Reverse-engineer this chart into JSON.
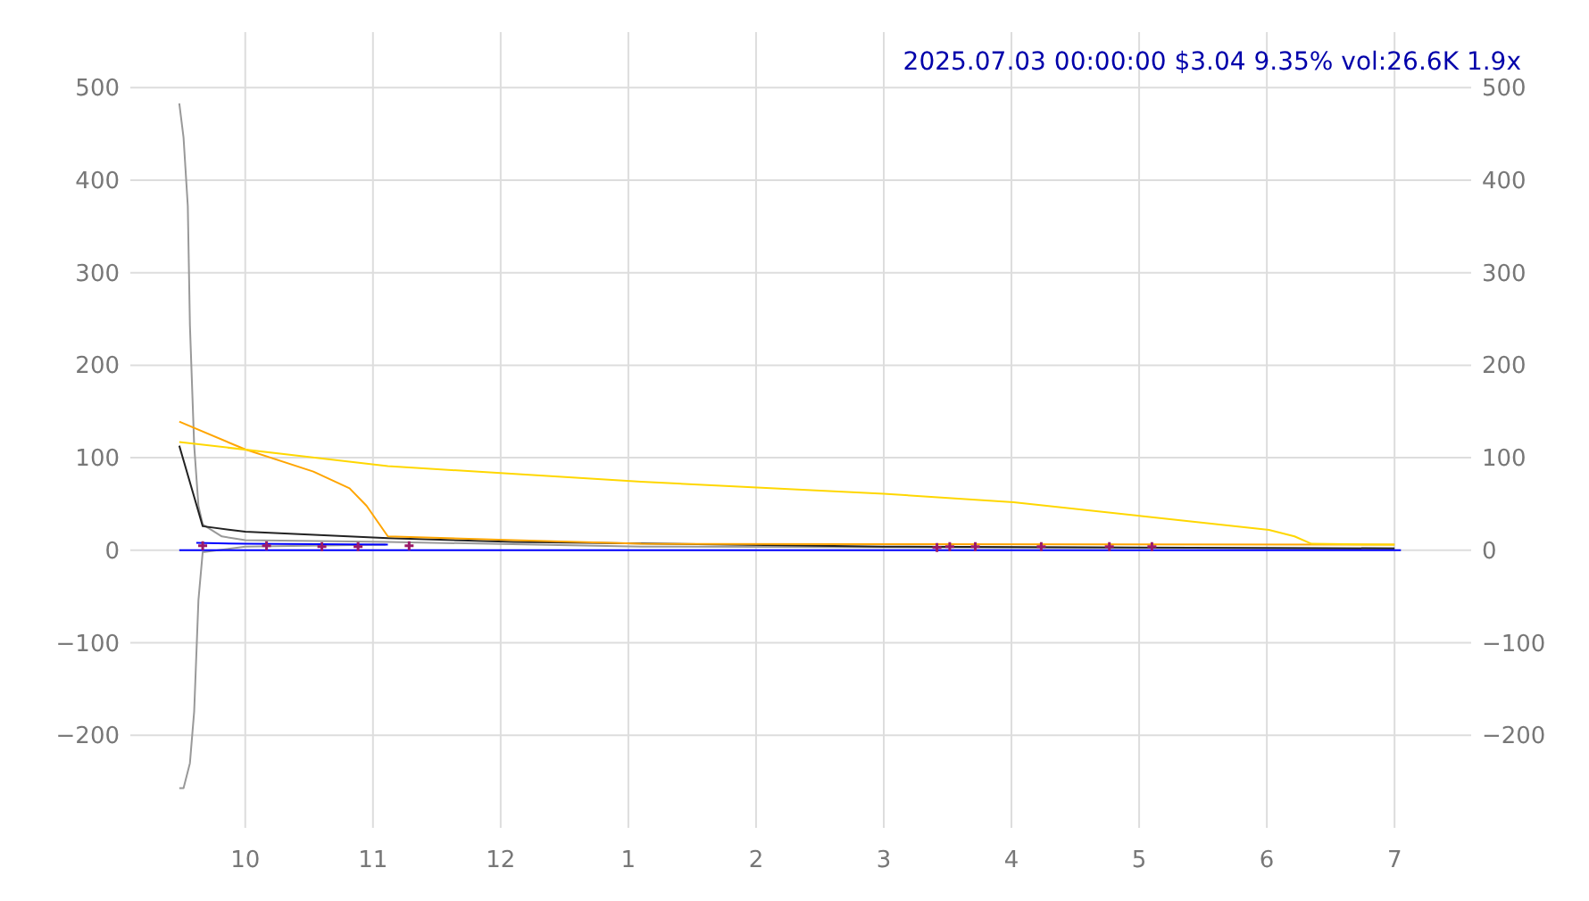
{
  "chart_data": {
    "type": "line",
    "title": "2025.07.03 00:00:00 $3.04 9.35% vol:26.6K 1.9x",
    "xlim": [
      "2025-07-03T09:06",
      "2025-07-03T19:36"
    ],
    "xticks": [
      {
        "value": "2025-07-03T10:00",
        "label": "10"
      },
      {
        "value": "2025-07-03T11:00",
        "label": "11"
      },
      {
        "value": "2025-07-03T12:00",
        "label": "12"
      },
      {
        "value": "2025-07-03T13:00",
        "label": "1"
      },
      {
        "value": "2025-07-03T14:00",
        "label": "2"
      },
      {
        "value": "2025-07-03T15:00",
        "label": "3"
      },
      {
        "value": "2025-07-03T16:00",
        "label": "4"
      },
      {
        "value": "2025-07-03T17:00",
        "label": "5"
      },
      {
        "value": "2025-07-03T18:00",
        "label": "6"
      },
      {
        "value": "2025-07-03T19:00",
        "label": "7"
      }
    ],
    "ylim": [
      -300,
      560
    ],
    "yticks": [
      -200,
      -100,
      0,
      100,
      200,
      300,
      400,
      500
    ],
    "y2lim": [
      -300,
      560
    ],
    "y2ticks": [
      -200,
      -100,
      0,
      100,
      200,
      300,
      400,
      500
    ],
    "grid": true,
    "marker": "none",
    "series": [
      {
        "color": "#999999",
        "x": [
          "2025-07-03T09:29",
          "2025-07-03T09:31",
          "2025-07-03T09:33",
          "2025-07-03T09:34",
          "2025-07-03T09:36",
          "2025-07-03T09:38",
          "2025-07-03T09:40",
          "2025-07-03T09:49",
          "2025-07-03T10:00",
          "2025-07-03T11:07",
          "2025-07-03T13:06",
          "2025-07-03T19:00"
        ],
        "values": [
          483,
          446,
          372,
          243,
          113,
          48,
          28,
          15,
          11,
          9,
          4,
          2
        ]
      },
      {
        "color": "#999999",
        "x": [
          "2025-07-03T09:29",
          "2025-07-03T09:31",
          "2025-07-03T09:34",
          "2025-07-03T09:36",
          "2025-07-03T09:38",
          "2025-07-03T09:40",
          "2025-07-03T10:00",
          "2025-07-03T11:06"
        ],
        "values": [
          -257,
          -257,
          -230,
          -174,
          -54,
          -2,
          4,
          6
        ]
      },
      {
        "color": "#222222",
        "x": [
          "2025-07-03T09:29",
          "2025-07-03T09:40",
          "2025-07-03T10:00",
          "2025-07-03T11:07",
          "2025-07-03T12:06",
          "2025-07-03T15:00",
          "2025-07-03T19:00"
        ],
        "values": [
          113,
          26,
          20,
          13,
          9,
          4,
          2
        ]
      },
      {
        "color": "#ffa500",
        "x": [
          "2025-07-03T09:29",
          "2025-07-03T10:00",
          "2025-07-03T10:32",
          "2025-07-03T10:49",
          "2025-07-03T10:57",
          "2025-07-03T11:07",
          "2025-07-03T12:06",
          "2025-07-03T13:06",
          "2025-07-03T19:00"
        ],
        "values": [
          139,
          109,
          85,
          67,
          48,
          15,
          11,
          7,
          6
        ]
      },
      {
        "color": "#ffd700",
        "x": [
          "2025-07-03T09:29",
          "2025-07-03T11:07",
          "2025-07-03T13:06",
          "2025-07-03T15:00",
          "2025-07-03T16:01",
          "2025-07-03T17:01",
          "2025-07-03T18:01",
          "2025-07-03T18:13",
          "2025-07-03T18:21",
          "2025-07-03T19:00"
        ],
        "values": [
          117,
          91,
          74,
          61,
          52,
          37,
          22,
          15,
          7,
          6
        ]
      },
      {
        "color": "#0000ff",
        "x": [
          "2025-07-03T09:37",
          "2025-07-03T10:00",
          "2025-07-03T11:07"
        ],
        "values": [
          8,
          7,
          6
        ]
      },
      {
        "color": "#0000ff",
        "x": [
          "2025-07-03T09:29",
          "2025-07-03T19:03"
        ],
        "values": [
          0,
          0
        ]
      },
      {
        "type": "scatter",
        "marker": "cross",
        "color": "#9a1a6a",
        "x": [
          "2025-07-03T09:40",
          "2025-07-03T10:10",
          "2025-07-03T10:36",
          "2025-07-03T10:53",
          "2025-07-03T11:17",
          "2025-07-03T15:25",
          "2025-07-03T15:31",
          "2025-07-03T15:43",
          "2025-07-03T16:14",
          "2025-07-03T16:46",
          "2025-07-03T17:06"
        ],
        "values": [
          5,
          5,
          4,
          4,
          5,
          3,
          4,
          4,
          4,
          4,
          4
        ]
      }
    ]
  }
}
